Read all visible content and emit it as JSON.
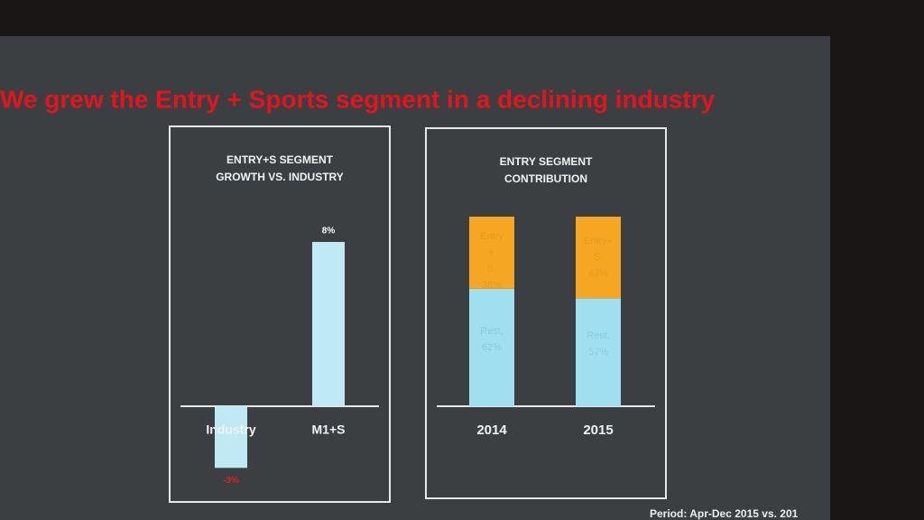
{
  "title": "We grew the  Entry + Sports segment in a declining industry",
  "footnote": "Period: Apr-Dec 2015 vs. 201",
  "chart_data": [
    {
      "type": "bar",
      "title": "ENTRY+S SEGMENT GROWTH VS. INDUSTRY",
      "categories": [
        "Industry",
        "M1+S"
      ],
      "values": [
        -3,
        8
      ],
      "value_labels": [
        "-3%",
        "8%"
      ],
      "color": "#bfeaf5",
      "label_colors": [
        "#e0201b",
        "#ffffff"
      ]
    },
    {
      "type": "stacked_bar",
      "title": "ENTRY SEGMENT CONTRIBUTION",
      "categories": [
        "2014",
        "2015"
      ],
      "series": [
        {
          "name": "Rest",
          "color": "#9fdff0",
          "values": [
            62,
            57
          ],
          "value_labels": [
            "Rest, 62%",
            "Rest, 57%"
          ]
        },
        {
          "name": "Entry+S",
          "color": "#f5a623",
          "values": [
            38,
            43
          ],
          "value_labels": [
            "Entry +S, 38%",
            "Entry+ S, 43%"
          ]
        }
      ]
    }
  ]
}
